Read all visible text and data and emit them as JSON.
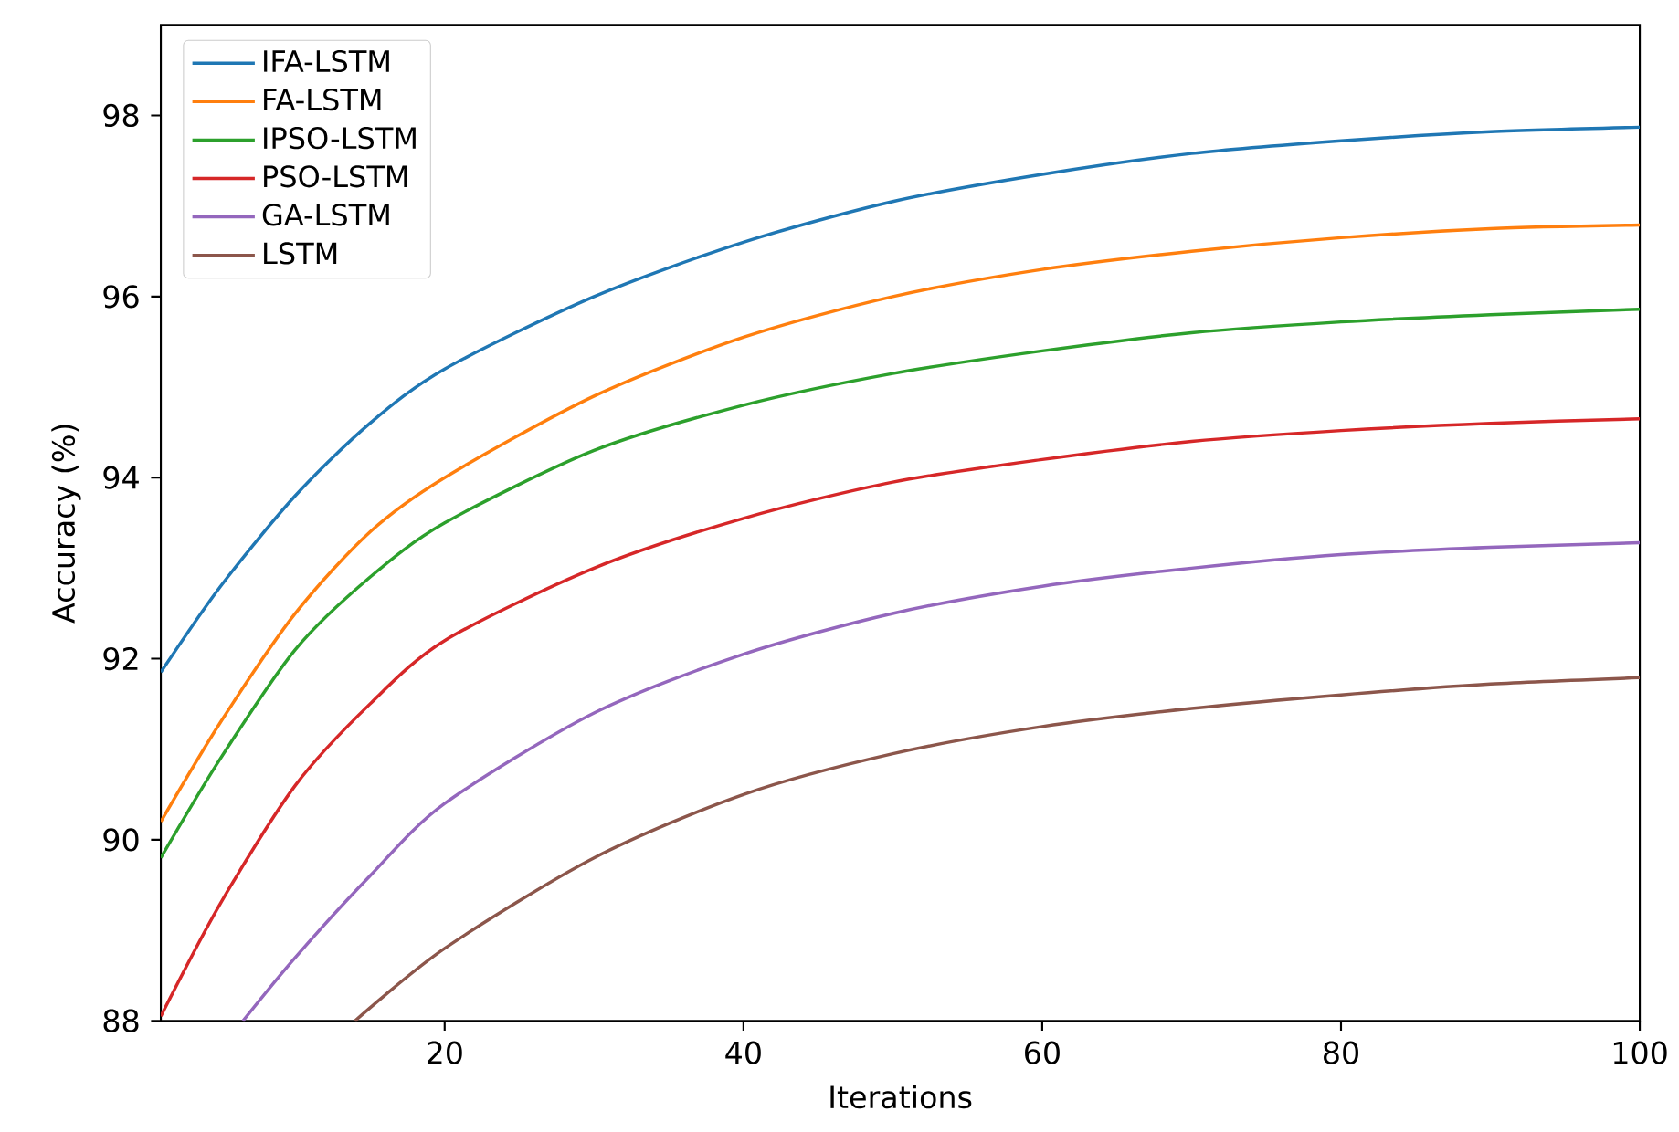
{
  "chart_data": {
    "type": "line",
    "xlabel": "Iterations",
    "ylabel": "Accuracy (%)",
    "xlim": [
      1,
      100
    ],
    "ylim": [
      88,
      99
    ],
    "xticks": [
      20,
      40,
      60,
      80,
      100
    ],
    "yticks": [
      88,
      90,
      92,
      94,
      96,
      98
    ],
    "legend": "top left",
    "grid": false,
    "line_style": "solid",
    "marker": "none",
    "series": [
      {
        "name": "IFA-LSTM",
        "color": "#1f77b4",
        "x": [
          1,
          5,
          10,
          15,
          20,
          30,
          40,
          50,
          60,
          70,
          80,
          90,
          100
        ],
        "values": [
          91.85,
          92.8,
          93.8,
          94.6,
          95.2,
          96.0,
          96.6,
          97.05,
          97.35,
          97.58,
          97.72,
          97.82,
          97.87
        ]
      },
      {
        "name": "FA-LSTM",
        "color": "#ff7f0e",
        "x": [
          1,
          5,
          10,
          15,
          20,
          30,
          40,
          50,
          60,
          70,
          80,
          90,
          100
        ],
        "values": [
          90.2,
          91.3,
          92.5,
          93.4,
          94.0,
          94.9,
          95.55,
          96.0,
          96.3,
          96.5,
          96.65,
          96.75,
          96.79
        ]
      },
      {
        "name": "IPSO-LSTM",
        "color": "#2ca02c",
        "x": [
          1,
          5,
          10,
          15,
          20,
          30,
          40,
          50,
          60,
          70,
          80,
          90,
          100
        ],
        "values": [
          89.8,
          90.9,
          92.1,
          92.9,
          93.5,
          94.3,
          94.8,
          95.15,
          95.4,
          95.6,
          95.72,
          95.8,
          95.86
        ]
      },
      {
        "name": "PSO-LSTM",
        "color": "#d62728",
        "x": [
          1,
          5,
          10,
          15,
          20,
          30,
          40,
          50,
          60,
          70,
          80,
          90,
          100
        ],
        "values": [
          88.05,
          89.3,
          90.6,
          91.5,
          92.2,
          93.0,
          93.55,
          93.95,
          94.2,
          94.4,
          94.52,
          94.6,
          94.65
        ]
      },
      {
        "name": "GA-LSTM",
        "color": "#9467bd",
        "x": [
          6.5,
          10,
          15,
          20,
          30,
          40,
          50,
          60,
          70,
          80,
          90,
          100
        ],
        "values": [
          88.0,
          88.7,
          89.6,
          90.4,
          91.4,
          92.05,
          92.5,
          92.8,
          93.0,
          93.15,
          93.23,
          93.28
        ]
      },
      {
        "name": "LSTM",
        "color": "#8c564b",
        "x": [
          14,
          20,
          30,
          40,
          50,
          60,
          70,
          80,
          90,
          100
        ],
        "values": [
          88.0,
          88.8,
          89.8,
          90.5,
          90.95,
          91.25,
          91.45,
          91.6,
          91.72,
          91.79
        ]
      }
    ]
  }
}
